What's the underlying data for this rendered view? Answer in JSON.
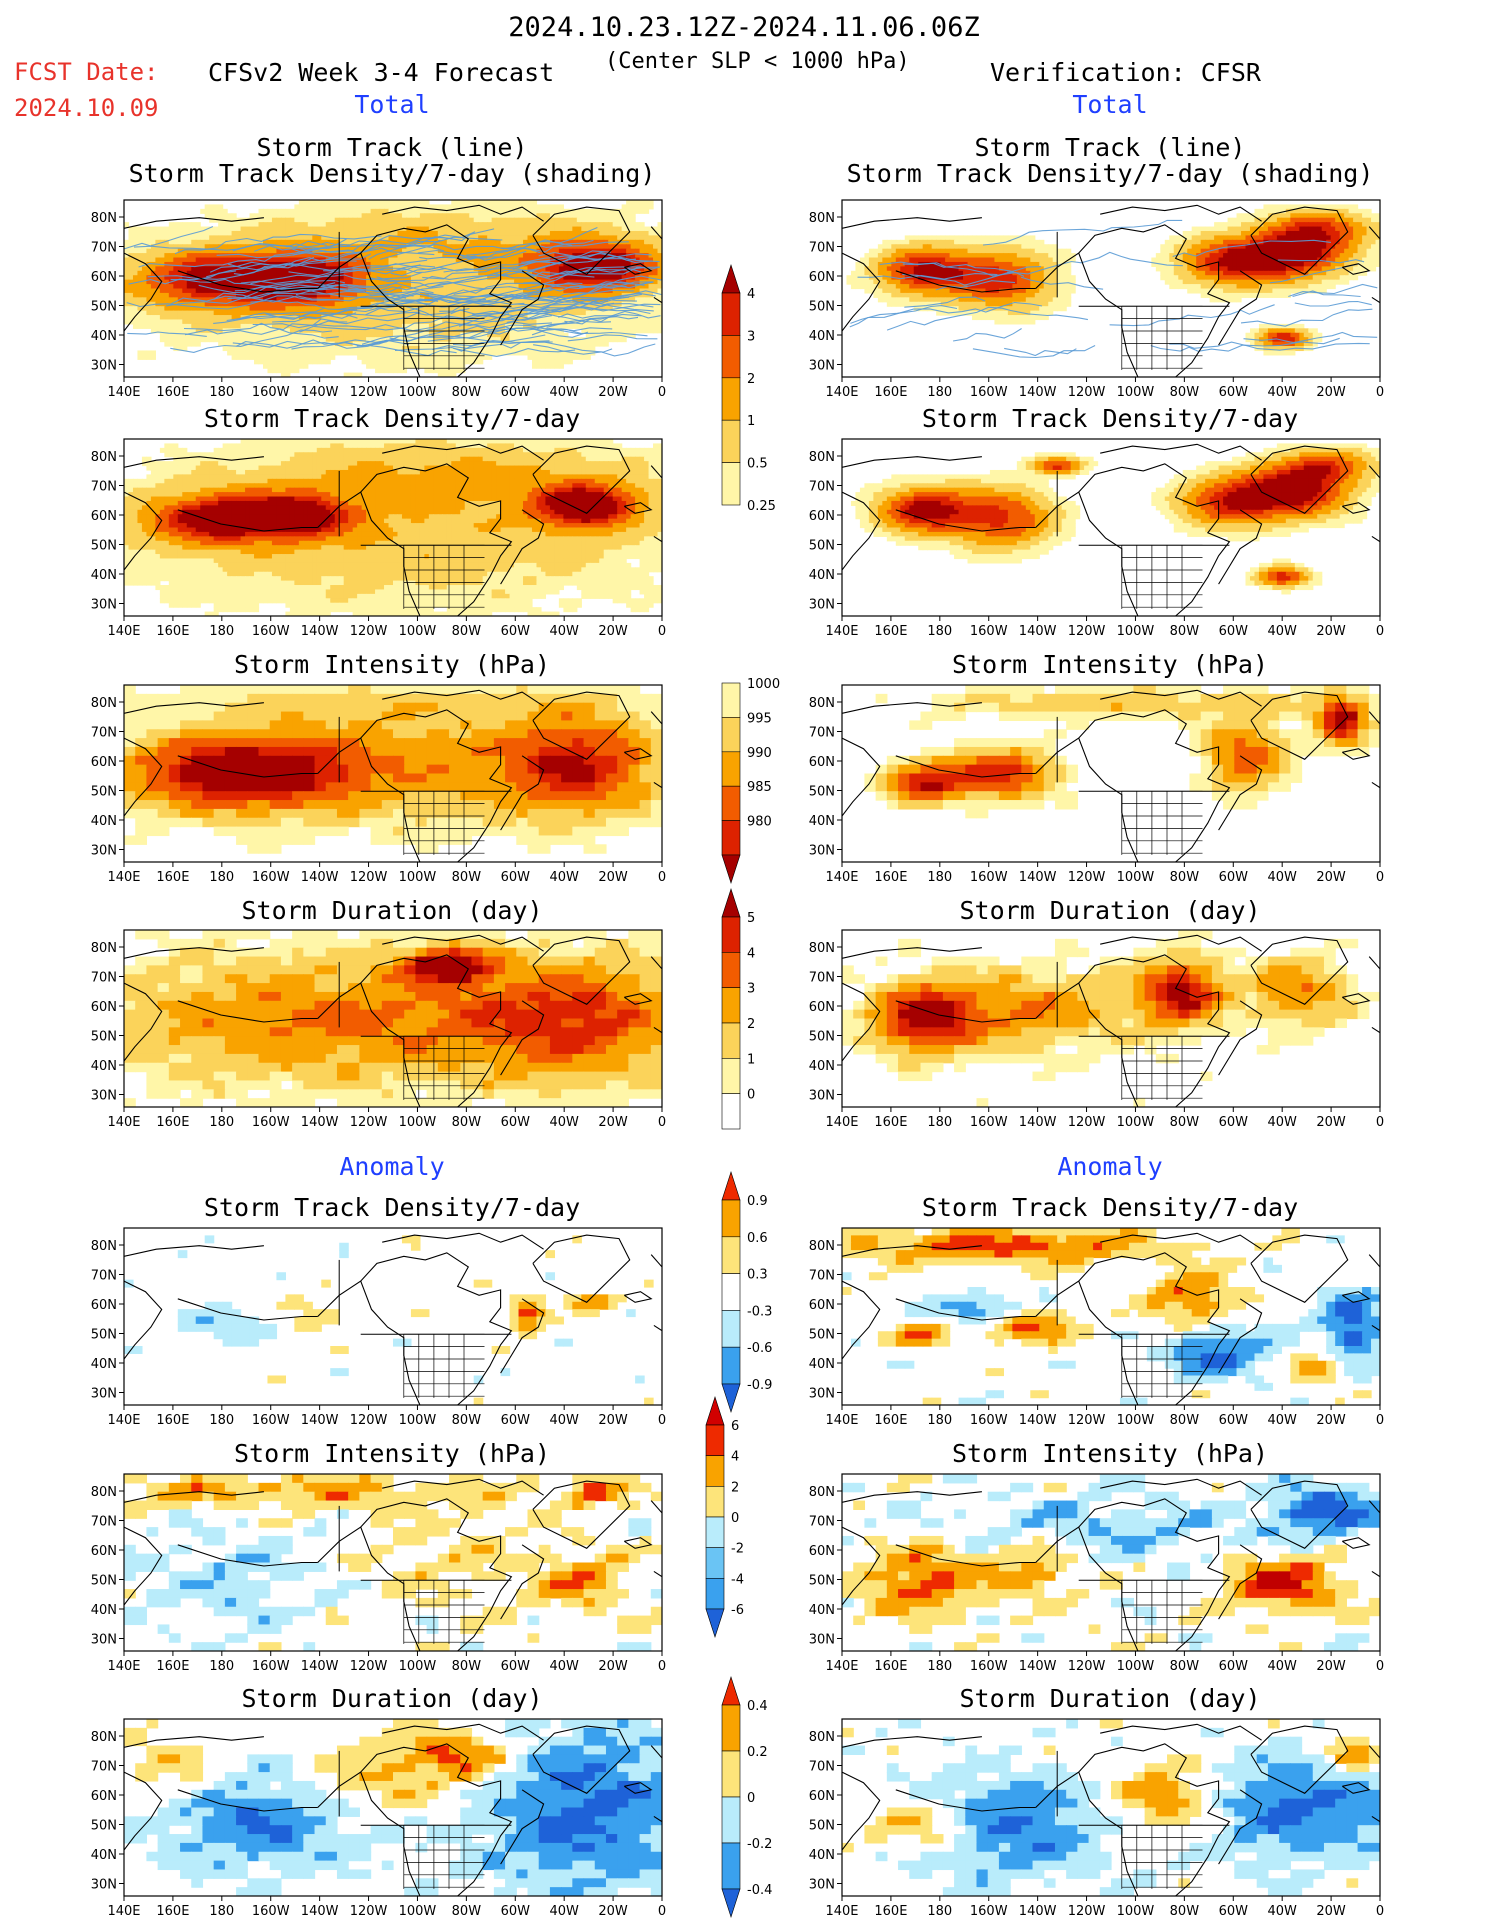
{
  "header": {
    "date_range": "2024.10.23.12Z-2024.11.06.06Z",
    "fcst_label": "FCST Date:",
    "fcst_date": "2024.10.09",
    "forecast_title": "CFSv2 Week 3-4 Forecast",
    "criterion": "(Center SLP < 1000 hPa)",
    "verification": "Verification: CFSR"
  },
  "sections": {
    "total_left": "Total",
    "total_right": "Total",
    "anomaly_left": "Anomaly",
    "anomaly_right": "Anomaly"
  },
  "axes": {
    "lat_labels": [
      "80N",
      "70N",
      "60N",
      "50N",
      "40N",
      "30N"
    ],
    "lon_labels": [
      "140E",
      "160E",
      "180",
      "160W",
      "140W",
      "120W",
      "100W",
      "80W",
      "60W",
      "40W",
      "20W",
      "0"
    ]
  },
  "panels": {
    "left": [
      {
        "title1": "Storm Track (line)",
        "title2": "Storm Track Density/7-day (shading)"
      },
      {
        "title1": "Storm Track Density/7-day"
      },
      {
        "title1": "Storm Intensity (hPa)"
      },
      {
        "title1": "Storm Duration (day)"
      },
      {
        "title1": "Storm Track Density/7-day"
      },
      {
        "title1": "Storm Intensity (hPa)"
      },
      {
        "title1": "Storm Duration (day)"
      }
    ],
    "right": [
      {
        "title1": "Storm Track (line)",
        "title2": "Storm Track Density/7-day (shading)"
      },
      {
        "title1": "Storm Track Density/7-day"
      },
      {
        "title1": "Storm Intensity (hPa)"
      },
      {
        "title1": "Storm Duration (day)"
      },
      {
        "title1": "Storm Track Density/7-day"
      },
      {
        "title1": "Storm Intensity (hPa)"
      },
      {
        "title1": "Storm Duration (day)"
      }
    ]
  },
  "colorbars": [
    {
      "name": "density-total",
      "labels": [
        "4",
        "3",
        "2",
        "1",
        "0.5",
        "0.25"
      ],
      "colors": [
        "#a50000",
        "#dd2200",
        "#f25c00",
        "#f9a300",
        "#fbd35a",
        "#fff6a8"
      ]
    },
    {
      "name": "intensity-total",
      "labels": [
        "1000",
        "995",
        "990",
        "985",
        "980"
      ],
      "colors": [
        "#fff6a8",
        "#fbd35a",
        "#f9a300",
        "#f25c00",
        "#dd2200",
        "#a50000"
      ]
    },
    {
      "name": "duration-total",
      "labels": [
        "5",
        "4",
        "3",
        "2",
        "1",
        "0"
      ],
      "colors": [
        "#a50000",
        "#dd2200",
        "#f25c00",
        "#f9a300",
        "#fbd35a",
        "#fff6a8",
        "#ffffff"
      ]
    },
    {
      "name": "density-anom",
      "labels": [
        "0.9",
        "0.6",
        "0.3",
        "-0.3",
        "-0.6",
        "-0.9"
      ],
      "colors": [
        "#ee2a00",
        "#f9a300",
        "#fde47a",
        "#ffffff",
        "#b9ecfb",
        "#3aa1ee",
        "#1e62d8"
      ]
    },
    {
      "name": "intensity-anom",
      "labels": [
        "6",
        "4",
        "2",
        "0",
        "-2",
        "-4",
        "-6"
      ],
      "colors": [
        "#d10000",
        "#ee2a00",
        "#f9a300",
        "#fde47a",
        "#b9ecfb",
        "#6ac4f4",
        "#3aa1ee",
        "#1e62d8"
      ]
    },
    {
      "name": "duration-anom",
      "labels": [
        "0.4",
        "0.2",
        "0",
        "-0.2",
        "-0.4"
      ],
      "colors": [
        "#ee2a00",
        "#f9a300",
        "#fde47a",
        "#b9ecfb",
        "#3aa1ee",
        "#1e62d8"
      ]
    }
  ],
  "chart_data": [
    {
      "type": "heatmap",
      "panel": "left-1",
      "title": "Storm Track (line)",
      "subtitle": "Storm Track Density/7-day (shading)",
      "xlim": [
        "140E",
        "0"
      ],
      "ylim": [
        "25N",
        "85N"
      ],
      "scale": [
        0.25,
        0.5,
        1,
        2,
        3,
        4
      ],
      "tracks_overlay": true
    },
    {
      "type": "heatmap",
      "panel": "left-2",
      "title": "Storm Track Density/7-day",
      "scale": [
        0.25,
        0.5,
        1,
        2,
        3,
        4
      ]
    },
    {
      "type": "heatmap",
      "panel": "left-3",
      "title": "Storm Intensity (hPa)",
      "scale": [
        1000,
        995,
        990,
        985,
        980
      ]
    },
    {
      "type": "heatmap",
      "panel": "left-4",
      "title": "Storm Duration (day)",
      "scale": [
        0,
        1,
        2,
        3,
        4,
        5
      ]
    },
    {
      "type": "heatmap",
      "panel": "left-5",
      "title": "Storm Track Density/7-day",
      "scale": [
        -0.9,
        -0.6,
        -0.3,
        0.3,
        0.6,
        0.9
      ]
    },
    {
      "type": "heatmap",
      "panel": "left-6",
      "title": "Storm Intensity (hPa)",
      "scale": [
        -6,
        -4,
        -2,
        0,
        2,
        4,
        6
      ]
    },
    {
      "type": "heatmap",
      "panel": "left-7",
      "title": "Storm Duration (day)",
      "scale": [
        -0.4,
        -0.2,
        0,
        0.2,
        0.4
      ]
    },
    {
      "type": "heatmap",
      "panel": "right-1",
      "title": "Storm Track (line)",
      "subtitle": "Storm Track Density/7-day (shading)",
      "scale": [
        0.25,
        0.5,
        1,
        2,
        3,
        4
      ],
      "tracks_overlay": true
    },
    {
      "type": "heatmap",
      "panel": "right-2",
      "title": "Storm Track Density/7-day",
      "scale": [
        0.25,
        0.5,
        1,
        2,
        3,
        4
      ]
    },
    {
      "type": "heatmap",
      "panel": "right-3",
      "title": "Storm Intensity (hPa)",
      "scale": [
        1000,
        995,
        990,
        985,
        980
      ]
    },
    {
      "type": "heatmap",
      "panel": "right-4",
      "title": "Storm Duration (day)",
      "scale": [
        0,
        1,
        2,
        3,
        4,
        5
      ]
    },
    {
      "type": "heatmap",
      "panel": "right-5",
      "title": "Storm Track Density/7-day",
      "scale": [
        -0.9,
        -0.6,
        -0.3,
        0.3,
        0.6,
        0.9
      ]
    },
    {
      "type": "heatmap",
      "panel": "right-6",
      "title": "Storm Intensity (hPa)",
      "scale": [
        -6,
        -4,
        -2,
        0,
        2,
        4,
        6
      ]
    },
    {
      "type": "heatmap",
      "panel": "right-7",
      "title": "Storm Duration (day)",
      "scale": [
        -0.4,
        -0.2,
        0,
        0.2,
        0.4
      ]
    }
  ]
}
